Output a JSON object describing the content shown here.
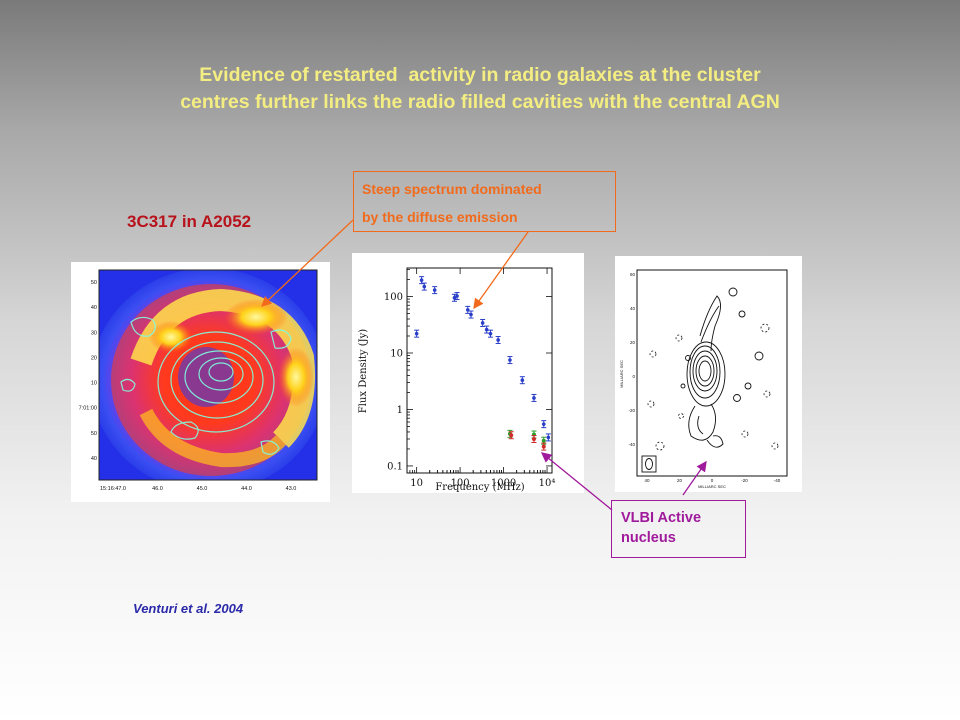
{
  "slide": {
    "title_lines": [
      "Evidence of restarted  activity in radio galaxies at the cluster",
      "centres further links the radio filled cavities with the central AGN"
    ],
    "subject": "3C317 in A2052",
    "credit": "Venturi et al. 2004",
    "callout_steep": [
      "Steep spectrum dominated",
      "by the diffuse emission"
    ],
    "callout_vlbi": [
      "VLBI Active",
      "nucleus"
    ],
    "colors": {
      "title": "#f4ee82",
      "subject": "#b8121c",
      "credit": "#2b2aa8",
      "orange_callout": "#f26a1b",
      "purple_callout": "#a01a9c"
    }
  },
  "xray_map": {
    "y_ticks": [
      "50",
      "40",
      "30",
      "20",
      "10",
      "7:01:00",
      "50",
      "40"
    ],
    "x_ticks": [
      "15:16:47.0",
      "46.0",
      "45.0",
      "44.0",
      "43.0"
    ]
  },
  "chart_data": {
    "type": "scatter",
    "xlabel": "Frequency (MHz)",
    "ylabel": "Flux Density (Jy)",
    "x_scale": "log",
    "y_scale": "log",
    "xlim": [
      6,
      13000
    ],
    "ylim": [
      0.075,
      320
    ],
    "x_tick_labels": [
      "10",
      "100",
      "1000",
      "10⁴"
    ],
    "y_tick_labels": [
      "0.1",
      "1",
      "10",
      "100"
    ],
    "series": [
      {
        "color": "#2a3ec9",
        "points": [
          {
            "x": 10,
            "y": 22
          },
          {
            "x": 13,
            "y": 195
          },
          {
            "x": 15,
            "y": 150
          },
          {
            "x": 26,
            "y": 130
          },
          {
            "x": 74,
            "y": 95
          },
          {
            "x": 85,
            "y": 102
          },
          {
            "x": 150,
            "y": 58
          },
          {
            "x": 178,
            "y": 48
          },
          {
            "x": 330,
            "y": 34
          },
          {
            "x": 408,
            "y": 26
          },
          {
            "x": 500,
            "y": 22
          },
          {
            "x": 750,
            "y": 17
          },
          {
            "x": 1400,
            "y": 7.5
          },
          {
            "x": 2700,
            "y": 3.3
          },
          {
            "x": 5000,
            "y": 1.6
          },
          {
            "x": 8400,
            "y": 0.55
          },
          {
            "x": 10700,
            "y": 0.32
          }
        ]
      },
      {
        "color": "#2a9d2a",
        "points": [
          {
            "x": 1400,
            "y": 0.37
          },
          {
            "x": 5000,
            "y": 0.36
          },
          {
            "x": 8400,
            "y": 0.28
          }
        ]
      },
      {
        "color": "#d12a2a",
        "points": [
          {
            "x": 1500,
            "y": 0.35
          },
          {
            "x": 5000,
            "y": 0.3
          },
          {
            "x": 8400,
            "y": 0.22
          }
        ]
      }
    ]
  },
  "vlbi_map": {
    "y_ticks": [
      "60",
      "40",
      "20",
      "0",
      "-20",
      "-40"
    ],
    "x_ticks": [
      "40",
      "20",
      "0",
      "-20",
      "-40"
    ],
    "y_axis_label": "MILLIARC SEC",
    "x_axis_label": "MILLIARC SEC"
  }
}
